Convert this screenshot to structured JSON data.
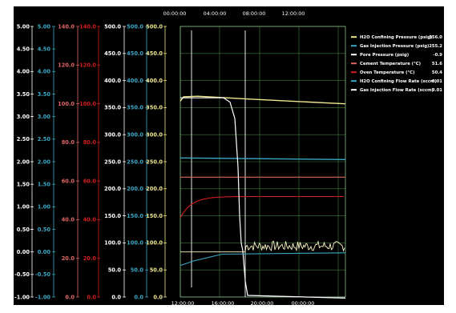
{
  "chart_data": {
    "type": "line",
    "plot_background": "#000000",
    "grid": true,
    "grid_color": "#3f7d3f",
    "legend_position": "right",
    "x_axis_top": {
      "ticks": [
        "00:00:00",
        "04:00:00",
        "08:00:00",
        "12:00:00"
      ]
    },
    "x_axis_bottom": {
      "ticks": [
        "12:00:00",
        "16:00:00",
        "20:00:00",
        "00:00:00"
      ]
    },
    "y_axes": [
      {
        "color": "#ffffff",
        "range": [
          -1.0,
          5.0
        ],
        "ticks": [
          "5.00",
          "4.50",
          "4.00",
          "3.50",
          "3.00",
          "2.50",
          "2.00",
          "1.50",
          "1.00",
          "0.50",
          "0.00",
          "-0.50",
          "-1.00"
        ]
      },
      {
        "color": "#3aa8c6",
        "range": [
          -1.0,
          5.0
        ],
        "ticks": [
          "5.00",
          "4.50",
          "4.00",
          "3.50",
          "3.00",
          "2.50",
          "2.00",
          "1.50",
          "1.00",
          "0.50",
          "0.00",
          "-0.50",
          "-1.00"
        ]
      },
      {
        "color": "#e06464",
        "range": [
          0,
          140
        ],
        "ticks": [
          "140.0",
          "120.0",
          "100.0",
          "80.0",
          "60.0",
          "40.0",
          "20.0",
          "0.0"
        ]
      },
      {
        "color": "#d21e1e",
        "range": [
          0,
          140
        ],
        "ticks": [
          "140.0",
          "120.0",
          "100.0",
          "80.0",
          "60.0",
          "40.0",
          "20.0",
          "0.0"
        ]
      },
      {
        "color": "#ffffff",
        "range": [
          0,
          500
        ],
        "ticks": [
          "500.0",
          "450.0",
          "400.0",
          "350.0",
          "300.0",
          "250.0",
          "200.0",
          "150.0",
          "100.0",
          "50.0",
          "0.0"
        ]
      },
      {
        "color": "#3aa8c6",
        "range": [
          0,
          500
        ],
        "ticks": [
          "500.0",
          "450.0",
          "400.0",
          "350.0",
          "300.0",
          "250.0",
          "200.0",
          "150.0",
          "100.0",
          "50.0",
          "0.0"
        ]
      },
      {
        "color": "#f0e68c",
        "range": [
          0,
          500
        ],
        "ticks": [
          "500.0",
          "450.0",
          "400.0",
          "350.0",
          "300.0",
          "250.0",
          "200.0",
          "150.0",
          "100.0",
          "50.0",
          "0.0"
        ]
      }
    ],
    "series": [
      {
        "name": "H2O Confining Pressure (psig)",
        "value": "356.0",
        "color": "#f0e68c"
      },
      {
        "name": "Gas Injection Pressure (psig)",
        "value": "255.2",
        "color": "#3aa8c6"
      },
      {
        "name": "Pore Pressure (psig)",
        "value": "-0.9",
        "color": "#ffffff"
      },
      {
        "name": "Cement Temperature (°C)",
        "value": "51.6",
        "color": "#e06464"
      },
      {
        "name": "Oven Temperature (°C)",
        "value": "50.4",
        "color": "#d21e1e"
      },
      {
        "name": "H2O Confining Flow Rate (sccm)",
        "value": "-0.01",
        "color": "#3aa8c6"
      },
      {
        "name": "Gas Injection Flow Rate (sccm)",
        "value": "0.01",
        "color": "#ffffff"
      }
    ]
  }
}
